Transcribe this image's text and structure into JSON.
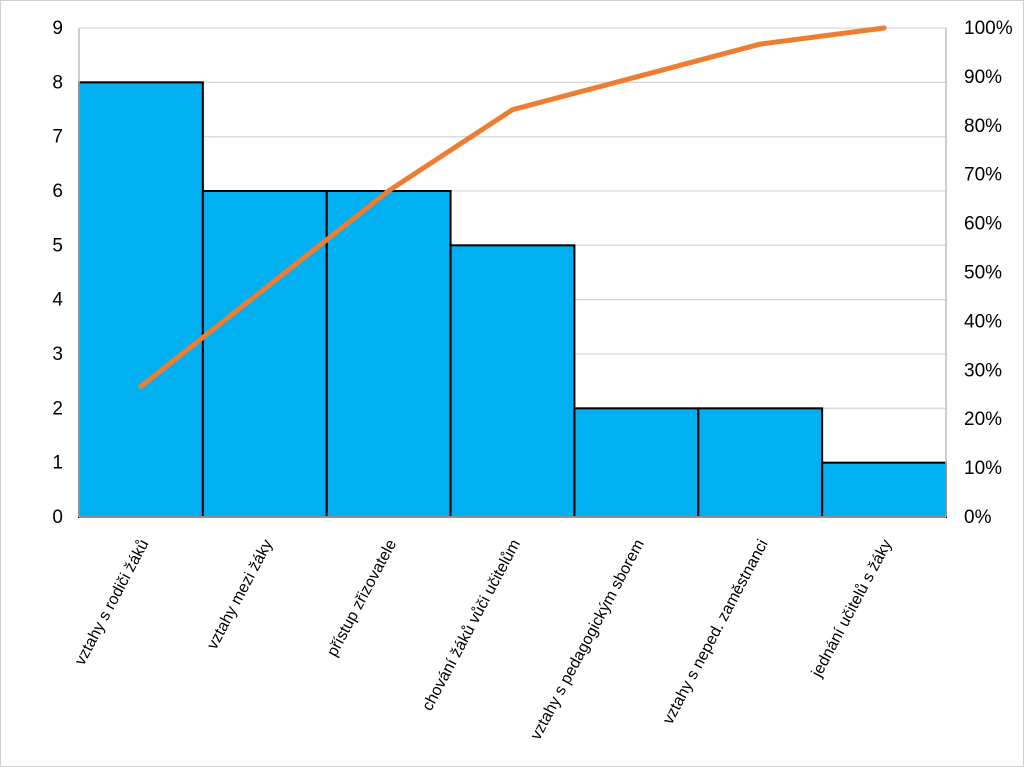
{
  "chart_data": {
    "type": "bar",
    "subtype": "pareto",
    "title": "",
    "xlabel": "",
    "ylabel": "",
    "categories": [
      "vztahy s rodiči žáků",
      "vztahy mezi žáky",
      "přístup zřizovatele",
      "chování žáků vůči učitelům",
      "vztahy s pedagogickým sborem",
      "vztahy s neped. zaměstnanci",
      "jednání učitelů s žáky"
    ],
    "series": [
      {
        "values": [
          8,
          6,
          6,
          5,
          2,
          2,
          1
        ],
        "type": "bar",
        "axis": "left",
        "color": "#00b0f0"
      },
      {
        "values": [
          26.7,
          46.7,
          66.7,
          83.3,
          90.0,
          96.7,
          100.0
        ],
        "type": "line",
        "axis": "right",
        "unit": "%",
        "color": "#ed7d31"
      }
    ],
    "ylim": [
      0,
      9
    ],
    "y_ticks": [
      "0",
      "1",
      "2",
      "3",
      "4",
      "5",
      "6",
      "7",
      "8",
      "9"
    ],
    "y2lim": [
      0,
      100
    ],
    "y2_ticks": [
      "0%",
      "10%",
      "20%",
      "30%",
      "40%",
      "50%",
      "60%",
      "70%",
      "80%",
      "90%",
      "100%"
    ],
    "grid": true,
    "legend": "none"
  }
}
